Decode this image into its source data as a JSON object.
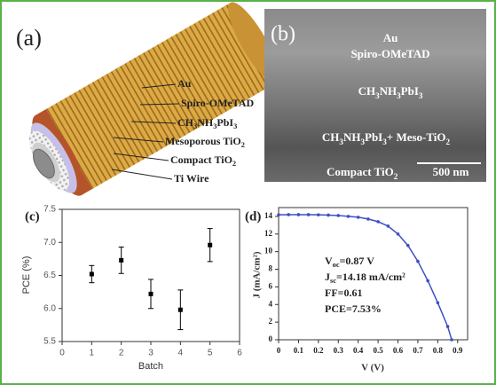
{
  "figure": {
    "panel_a": {
      "label": "(a)",
      "layers": [
        [
          "Au"
        ],
        [
          "Spiro-OMeTAD"
        ],
        [
          "CH",
          "3",
          "NH",
          "3",
          "PbI",
          "3"
        ],
        [
          "Mesoporous TiO",
          "2"
        ],
        [
          "Compact TiO",
          "2"
        ],
        [
          "Ti Wire"
        ]
      ]
    },
    "panel_b": {
      "label": "(b)",
      "layers": [
        [
          "Au"
        ],
        [
          "Spiro-OMeTAD"
        ],
        [
          "CH",
          "3",
          "NH",
          "3",
          "PbI",
          "3"
        ],
        [
          "CH",
          "3",
          "NH",
          "3",
          "PbI",
          "3",
          "+ Meso-TiO",
          "2"
        ],
        [
          "Compact TiO",
          "2"
        ]
      ],
      "scale_bar": "500 nm"
    }
  },
  "chart_data": [
    {
      "type": "scatter",
      "panel_label": "(c)",
      "x_label": "Batch",
      "y_label": "PCE (%)",
      "x": [
        1,
        2,
        3,
        4,
        5
      ],
      "values": [
        6.52,
        6.73,
        6.22,
        5.98,
        6.96
      ],
      "errors": [
        0.13,
        0.2,
        0.22,
        0.3,
        0.25
      ],
      "color": "#000000",
      "xlim": [
        0,
        6
      ],
      "xticks": [
        0,
        1,
        2,
        3,
        4,
        5,
        6
      ],
      "ylim": [
        5.5,
        7.5
      ],
      "yticks": [
        5.5,
        {
          "value": 6,
          "label": "6.0"
        },
        6.5,
        {
          "value": 7,
          "label": "7.0"
        },
        7.5
      ]
    },
    {
      "type": "line",
      "panel_label": "(d)",
      "x_label": "V (V)",
      "y_label": "J (mA/cm²)",
      "x": [
        0,
        0.05,
        0.1,
        0.15,
        0.2,
        0.25,
        0.3,
        0.35,
        0.4,
        0.45,
        0.5,
        0.55,
        0.6,
        0.65,
        0.7,
        0.75,
        0.8,
        0.85,
        0.87
      ],
      "values": [
        14.18,
        14.2,
        14.2,
        14.2,
        14.18,
        14.15,
        14.1,
        14.0,
        13.9,
        13.7,
        13.4,
        12.9,
        12.0,
        10.7,
        8.9,
        6.7,
        4.2,
        1.5,
        0
      ],
      "color": "#3d4fc4",
      "xlim": [
        0,
        0.95
      ],
      "xticks": [
        0,
        0.1,
        0.2,
        0.3,
        0.4,
        0.5,
        0.6,
        0.7,
        0.8,
        0.9
      ],
      "ylim": [
        0,
        15
      ],
      "yticks": [
        0,
        2,
        4,
        6,
        8,
        10,
        12,
        14
      ],
      "annotations": [
        [
          "V",
          "oc",
          "=0.87 V"
        ],
        [
          "J",
          "sc",
          "=14.18 mA/cm²"
        ],
        [
          "FF=0.61"
        ],
        [
          "PCE=7.53%"
        ]
      ]
    }
  ]
}
